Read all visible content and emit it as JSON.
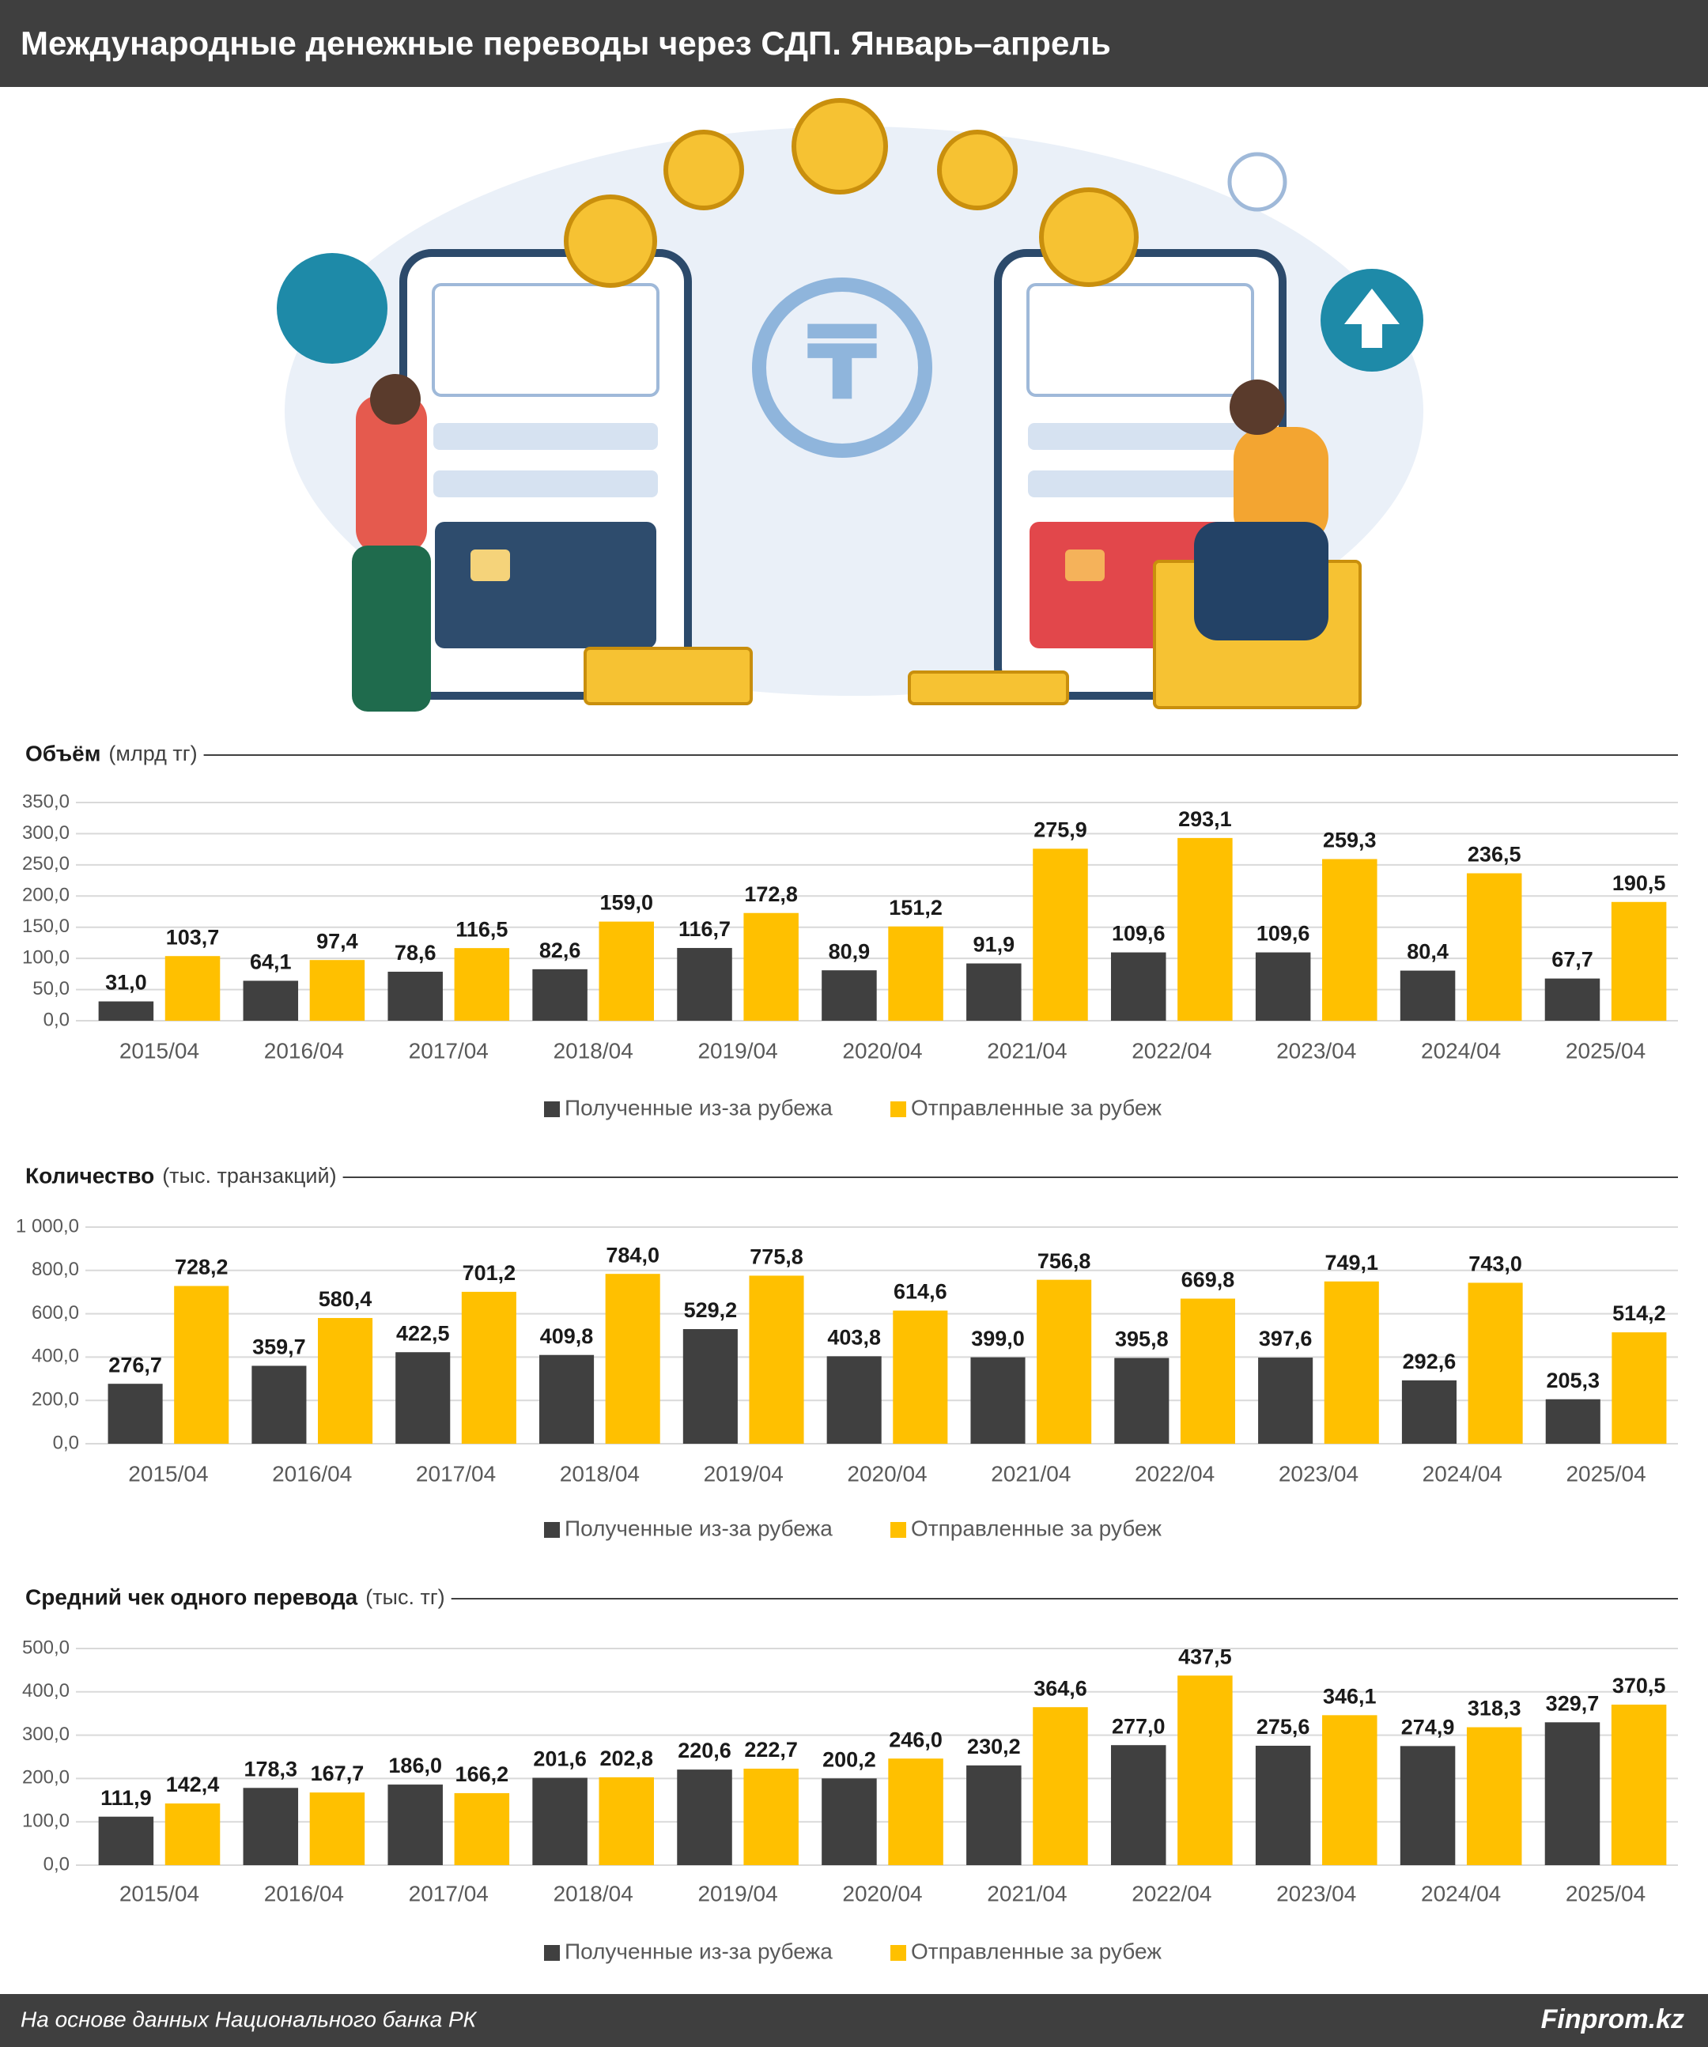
{
  "header": {
    "title": "Международные денежные переводы через СДП. Январь–апрель"
  },
  "footer": {
    "source": "На основе данных Национального банка РК",
    "brand": "Finprom.kz"
  },
  "chart_data": [
    {
      "type": "bar",
      "title": "Объём",
      "subtitle": "(млрд тг)",
      "categories": [
        "2015/04",
        "2016/04",
        "2017/04",
        "2018/04",
        "2019/04",
        "2020/04",
        "2021/04",
        "2022/04",
        "2023/04",
        "2024/04",
        "2025/04"
      ],
      "series": [
        {
          "name": "Полученные из-за рубежа",
          "color": "#404040",
          "values": [
            31.0,
            64.1,
            78.6,
            82.6,
            116.7,
            80.9,
            91.9,
            109.6,
            109.6,
            80.4,
            67.7
          ],
          "value_labels": [
            "31,0",
            "64,1",
            "78,6",
            "82,6",
            "116,7",
            "80,9",
            "91,9",
            "109,6",
            "109,6",
            "80,4",
            "67,7"
          ]
        },
        {
          "name": "Отправленные за рубеж",
          "color": "#FFC000",
          "values": [
            103.7,
            97.4,
            116.5,
            159.0,
            172.8,
            151.2,
            275.9,
            293.1,
            259.3,
            236.5,
            190.5
          ],
          "value_labels": [
            "103,7",
            "97,4",
            "116,5",
            "159,0",
            "172,8",
            "151,2",
            "275,9",
            "293,1",
            "259,3",
            "236,5",
            "190,5"
          ]
        }
      ],
      "ylim": [
        0,
        350
      ],
      "yticks": [
        {
          "value": 0,
          "label": "0,0"
        },
        {
          "value": 50,
          "label": "50,0"
        },
        {
          "value": 100,
          "label": "100,0"
        },
        {
          "value": 150,
          "label": "150,0"
        },
        {
          "value": 200,
          "label": "200,0"
        },
        {
          "value": 250,
          "label": "250,0"
        },
        {
          "value": 300,
          "label": "300,0"
        },
        {
          "value": 350,
          "label": "350,0"
        }
      ],
      "grid": true
    },
    {
      "type": "bar",
      "title": "Количество",
      "subtitle": "(тыс. транзакций)",
      "categories": [
        "2015/04",
        "2016/04",
        "2017/04",
        "2018/04",
        "2019/04",
        "2020/04",
        "2021/04",
        "2022/04",
        "2023/04",
        "2024/04",
        "2025/04"
      ],
      "series": [
        {
          "name": "Полученные из-за рубежа",
          "color": "#404040",
          "values": [
            276.7,
            359.7,
            422.5,
            409.8,
            529.2,
            403.8,
            399.0,
            395.8,
            397.6,
            292.6,
            205.3
          ],
          "value_labels": [
            "276,7",
            "359,7",
            "422,5",
            "409,8",
            "529,2",
            "403,8",
            "399,0",
            "395,8",
            "397,6",
            "292,6",
            "205,3"
          ]
        },
        {
          "name": "Отправленные за рубеж",
          "color": "#FFC000",
          "values": [
            728.2,
            580.4,
            701.2,
            784.0,
            775.8,
            614.6,
            756.8,
            669.8,
            749.1,
            743.0,
            514.2
          ],
          "value_labels": [
            "728,2",
            "580,4",
            "701,2",
            "784,0",
            "775,8",
            "614,6",
            "756,8",
            "669,8",
            "749,1",
            "743,0",
            "514,2"
          ]
        }
      ],
      "ylim": [
        0,
        1000
      ],
      "yticks": [
        {
          "value": 0,
          "label": "0,0"
        },
        {
          "value": 200,
          "label": "200,0"
        },
        {
          "value": 400,
          "label": "400,0"
        },
        {
          "value": 600,
          "label": "600,0"
        },
        {
          "value": 800,
          "label": "800,0"
        },
        {
          "value": 1000,
          "label": "1 000,0"
        }
      ],
      "grid": true
    },
    {
      "type": "bar",
      "title": "Средний чек одного перевода",
      "subtitle": "(тыс. тг)",
      "categories": [
        "2015/04",
        "2016/04",
        "2017/04",
        "2018/04",
        "2019/04",
        "2020/04",
        "2021/04",
        "2022/04",
        "2023/04",
        "2024/04",
        "2025/04"
      ],
      "series": [
        {
          "name": "Полученные из-за рубежа",
          "color": "#404040",
          "values": [
            111.9,
            178.3,
            186.0,
            201.6,
            220.6,
            200.2,
            230.2,
            277.0,
            275.6,
            274.9,
            329.7
          ],
          "value_labels": [
            "111,9",
            "178,3",
            "186,0",
            "201,6",
            "220,6",
            "200,2",
            "230,2",
            "277,0",
            "275,6",
            "274,9",
            "329,7"
          ]
        },
        {
          "name": "Отправленные за рубеж",
          "color": "#FFC000",
          "values": [
            142.4,
            167.7,
            166.2,
            202.8,
            222.7,
            246.0,
            364.6,
            437.5,
            346.1,
            318.3,
            370.5
          ],
          "value_labels": [
            "142,4",
            "167,7",
            "166,2",
            "202,8",
            "222,7",
            "246,0",
            "364,6",
            "437,5",
            "346,1",
            "318,3",
            "370,5"
          ]
        }
      ],
      "ylim": [
        0,
        500
      ],
      "yticks": [
        {
          "value": 0,
          "label": "0,0"
        },
        {
          "value": 100,
          "label": "100,0"
        },
        {
          "value": 200,
          "label": "200,0"
        },
        {
          "value": 300,
          "label": "300,0"
        },
        {
          "value": 400,
          "label": "400,0"
        },
        {
          "value": 500,
          "label": "500,0"
        }
      ],
      "grid": true
    }
  ]
}
